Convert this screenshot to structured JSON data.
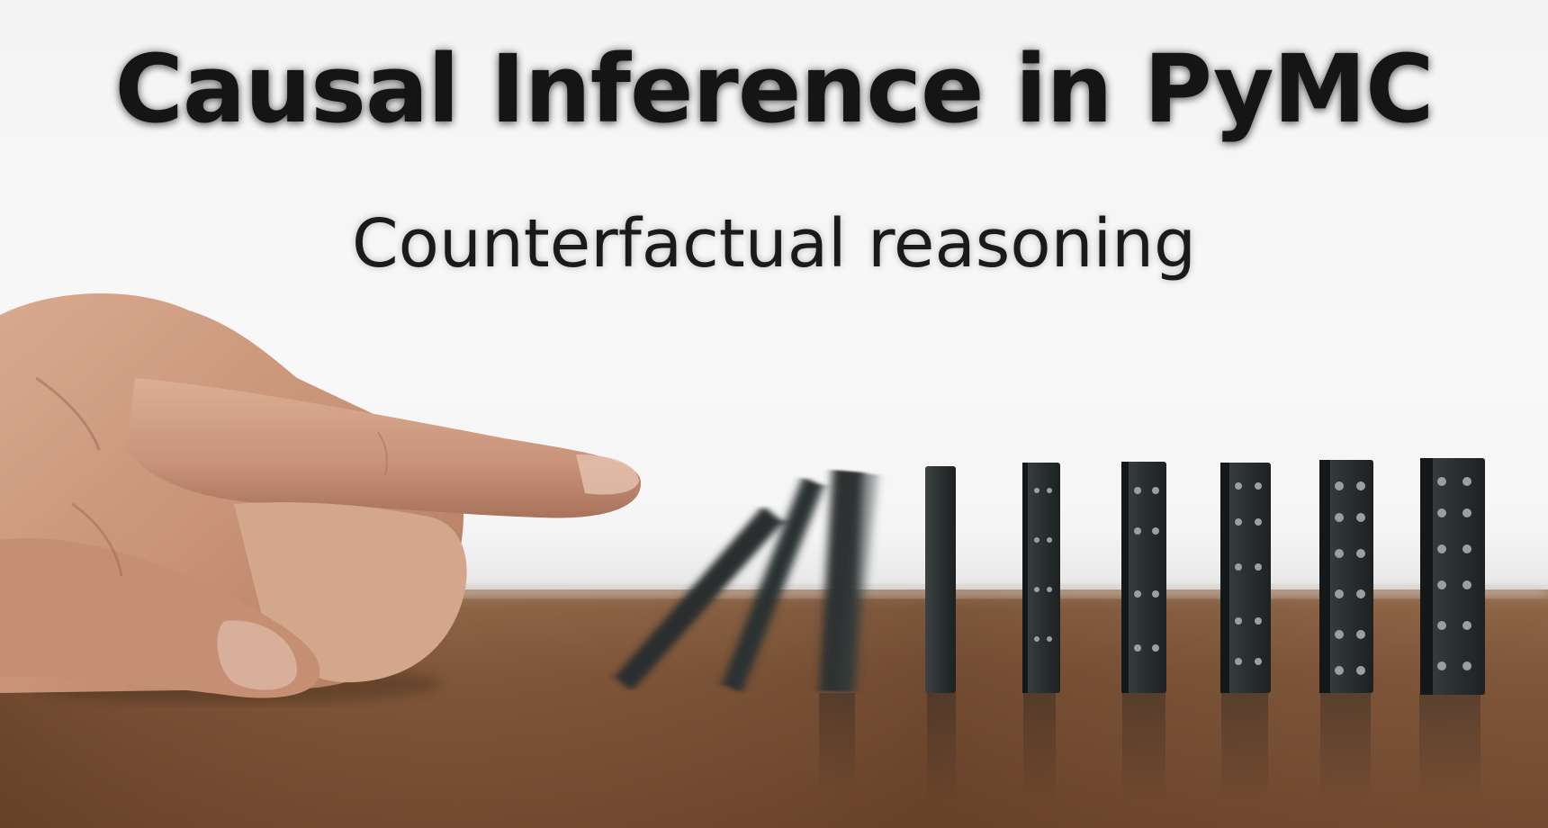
{
  "title": "Causal Inference in PyMC",
  "subtitle": "Counterfactual reasoning",
  "colors": {
    "background": "#f4f4f4",
    "title_text": "#151515",
    "table_wood": "#7a5236",
    "domino": "#2b3030"
  },
  "illustration": {
    "subject": "hand-pushing-dominoes",
    "domino_count": 9
  }
}
